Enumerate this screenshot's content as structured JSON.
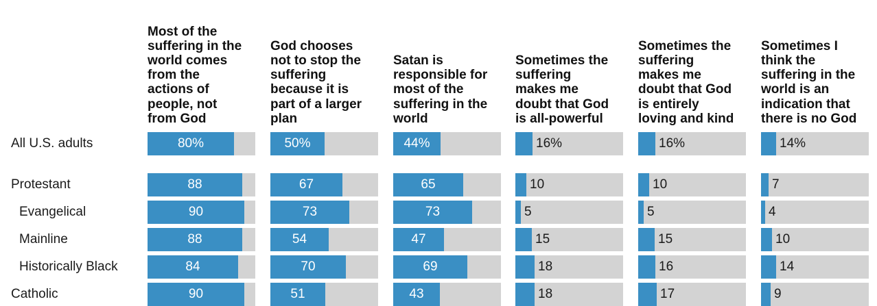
{
  "chart_data": {
    "type": "bar",
    "orientation": "horizontal",
    "layout": "small-multiples",
    "xlim": [
      0,
      100
    ],
    "unit_suffix_first_row": "%",
    "colors": {
      "bar": "#3a8fc4",
      "track": "#d3d3d3"
    },
    "columns": [
      "Most of the suffering in the world comes from the actions of people, not from God",
      "God chooses not to stop the suffering because it is part of a larger plan",
      "Satan is responsible for most of the suffering in the world",
      "Sometimes the suffering makes me doubt that God is all-powerful",
      "Sometimes the suffering makes me doubt that God is entirely loving and kind",
      "Sometimes I think the suffering in the world is an indication that there is no God"
    ],
    "column_lines": [
      [
        "Most of the",
        "suffering in the",
        "world comes",
        "from the",
        "actions of",
        "people, not",
        "from God"
      ],
      [
        "God chooses",
        "not to stop the",
        "suffering",
        "because it is",
        "part of a larger",
        "plan"
      ],
      [
        "Satan is",
        "responsible for",
        "most of the",
        "suffering in the",
        "world"
      ],
      [
        "Sometimes the",
        "suffering",
        "makes me",
        "doubt that God",
        "is all-powerful"
      ],
      [
        "Sometimes the",
        "suffering",
        "makes me",
        "doubt that God",
        "is entirely",
        "loving and kind"
      ],
      [
        "Sometimes I",
        "think the",
        "suffering in the",
        "world is an",
        "indication that",
        "there is no God"
      ]
    ],
    "rows": [
      {
        "label": "All U.S. adults",
        "indent": false,
        "values": [
          80,
          50,
          44,
          16,
          16,
          14
        ]
      },
      {
        "label": "Protestant",
        "indent": false,
        "values": [
          88,
          67,
          65,
          10,
          10,
          7
        ]
      },
      {
        "label": "Evangelical",
        "indent": true,
        "values": [
          90,
          73,
          73,
          5,
          5,
          4
        ]
      },
      {
        "label": "Mainline",
        "indent": true,
        "values": [
          88,
          54,
          47,
          15,
          15,
          10
        ]
      },
      {
        "label": "Historically Black",
        "indent": true,
        "values": [
          84,
          70,
          69,
          18,
          16,
          14
        ]
      },
      {
        "label": "Catholic",
        "indent": false,
        "values": [
          90,
          51,
          43,
          18,
          17,
          9
        ]
      }
    ]
  }
}
